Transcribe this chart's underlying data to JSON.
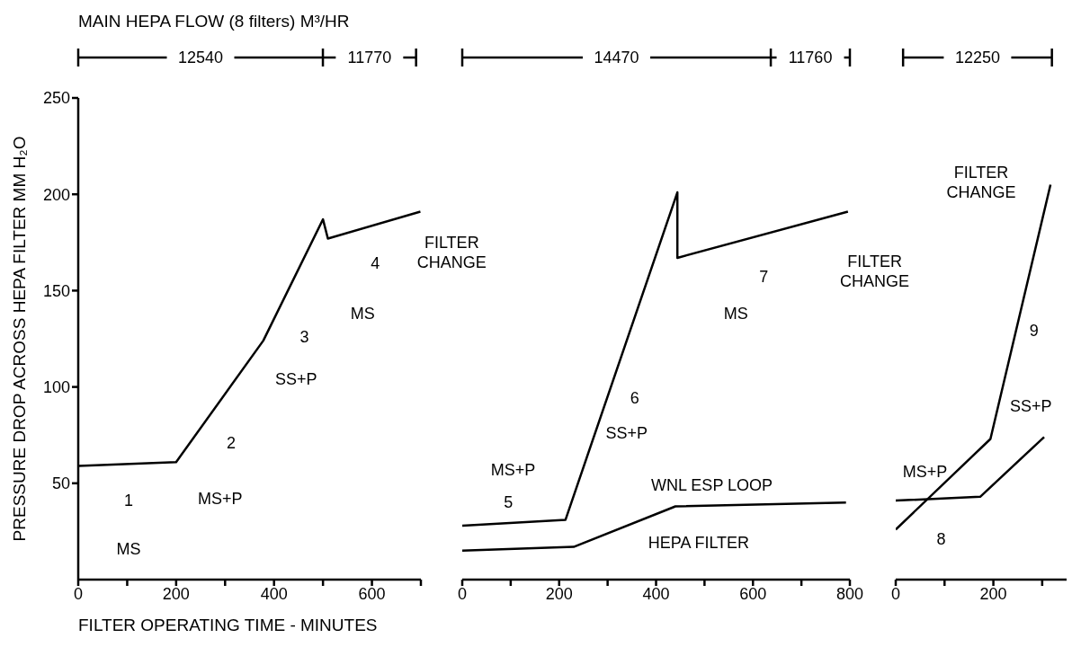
{
  "chart_data": [
    {
      "type": "line",
      "title": "MAIN HEPA FLOW (8 filters) M³/HR",
      "xlabel": "FILTER OPERATING TIME - MINUTES",
      "ylabel": "PRESSURE DROP ACROSS HEPA FILTER MM H₂O",
      "marker": "none",
      "line_style": "solid",
      "xlim": [
        0,
        700
      ],
      "xticks": [
        0,
        {
          "value": 100,
          "label": null
        },
        200,
        {
          "value": 300,
          "label": null
        },
        400,
        {
          "value": 500,
          "label": null
        },
        600,
        {
          "value": 700,
          "label": null
        }
      ],
      "ylim": [
        0,
        250
      ],
      "yticks": [
        50,
        100,
        150,
        200,
        250
      ],
      "series": [
        {
          "color": "#000000",
          "x": [
            0,
            200,
            378,
            500,
            510,
            699
          ],
          "values": [
            59,
            61,
            124,
            187,
            177,
            191
          ]
        }
      ],
      "annotations": [
        "12540",
        "11770",
        "1",
        "MS",
        "MS+P",
        "2",
        "SS+P",
        "3",
        "MS",
        "4",
        "FILTER\nCHANGE"
      ]
    },
    {
      "type": "line",
      "marker": "none",
      "line_style": "solid",
      "tick_labels": "x",
      "xlim": [
        0,
        800
      ],
      "xticks": [
        0,
        {
          "value": 100,
          "label": null
        },
        200,
        {
          "value": 300,
          "label": null
        },
        400,
        {
          "value": 500,
          "label": null
        },
        600,
        {
          "value": 700,
          "label": null
        },
        800
      ],
      "ylim": [
        0,
        250
      ],
      "series": [
        {
          "color": "#000000",
          "x": [
            0,
            213,
            444,
            444,
            796
          ],
          "values": [
            28,
            31,
            201,
            167,
            191
          ]
        },
        {
          "color": "#000000",
          "x": [
            0,
            230,
            440,
            792
          ],
          "values": [
            15,
            17,
            38,
            40
          ]
        }
      ],
      "annotations": [
        "14470",
        "11760",
        "MS+P",
        "5",
        "6",
        "SS+P",
        "7",
        "MS",
        "WNL ESP LOOP",
        "HEPA FILTER",
        "FILTER\nCHANGE"
      ]
    },
    {
      "type": "line",
      "marker": "none",
      "line_style": "solid",
      "tick_labels": "x",
      "xlim": [
        0,
        350
      ],
      "xticks": [
        0,
        {
          "value": 100,
          "label": null
        },
        200,
        {
          "value": 300,
          "label": null
        }
      ],
      "ylim": [
        0,
        250
      ],
      "series": [
        {
          "color": "#000000",
          "x": [
            0,
            194,
            317
          ],
          "values": [
            26,
            73,
            205
          ]
        },
        {
          "color": "#000000",
          "x": [
            0,
            173,
            304
          ],
          "values": [
            41,
            43,
            74
          ]
        }
      ],
      "annotations": [
        "12250",
        "MS+P",
        "8",
        "SS+P",
        "9",
        "FILTER\nCHANGE"
      ]
    }
  ]
}
